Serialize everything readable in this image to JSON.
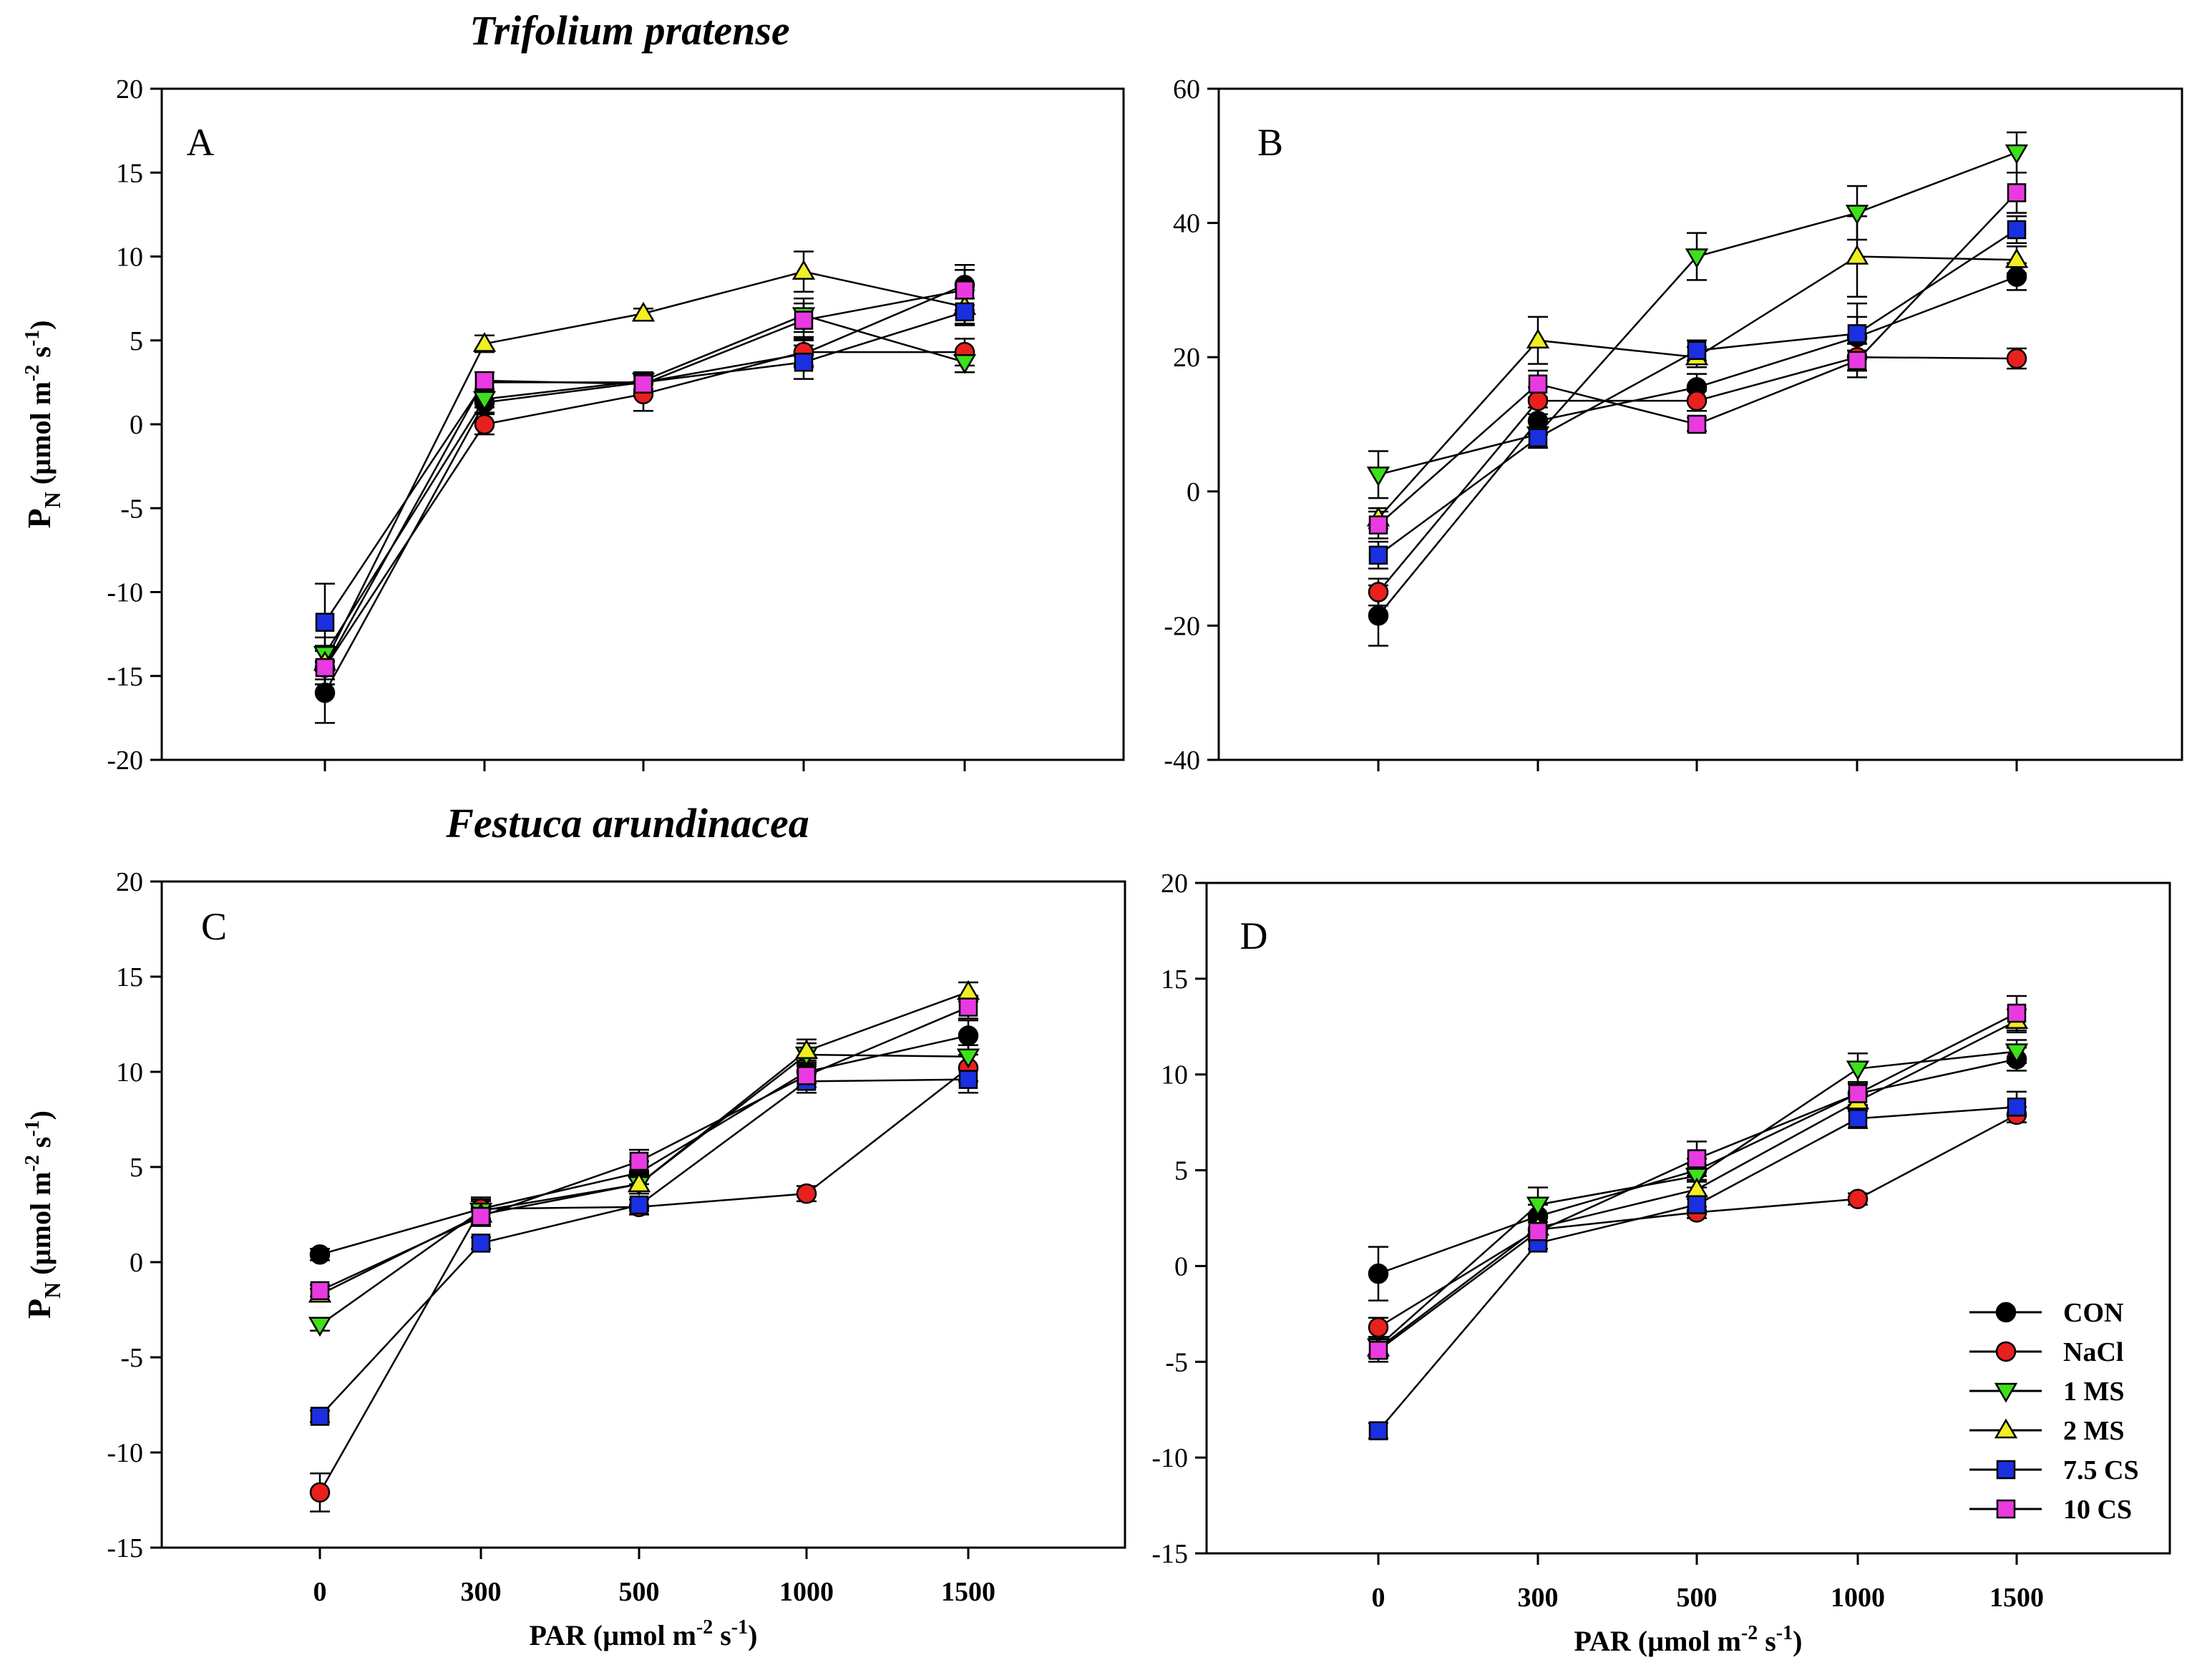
{
  "titles": {
    "top": "Trifolium pratense",
    "bottom": "Festuca arundinacea"
  },
  "axes": {
    "x_label_prefix": "PAR (µmol m",
    "x_label_exp1": "-2",
    "x_label_mid": " s",
    "x_label_exp2": "-1",
    "x_label_suffix": ")",
    "y_label_main": "P",
    "y_label_sub": "N",
    "y_label_unit": " (µmol m",
    "y_label_exp1": "-2",
    "y_label_mid": " s",
    "y_label_exp2": "-1",
    "y_label_suffix": ")"
  },
  "legend": [
    {
      "label": "CON",
      "color": "#000000",
      "marker": "circle"
    },
    {
      "label": "NaCl",
      "color": "#e8201e",
      "marker": "circle"
    },
    {
      "label": "1 MS",
      "color": "#3de01a",
      "marker": "triangle-down"
    },
    {
      "label": "2 MS",
      "color": "#f0ef22",
      "marker": "triangle-up"
    },
    {
      "label": "7.5 CS",
      "color": "#1a2fe0",
      "marker": "square"
    },
    {
      "label": "10 CS",
      "color": "#e83ae0",
      "marker": "square"
    }
  ],
  "chart_data": [
    {
      "panel": "A",
      "type": "line",
      "categories": [
        "0",
        "300",
        "500",
        "1000",
        "1500"
      ],
      "ylim": [
        -20,
        20
      ],
      "yticks": [
        -20,
        -15,
        -10,
        -5,
        0,
        5,
        10,
        15,
        20
      ],
      "series": [
        {
          "name": "CON",
          "values": [
            -16.0,
            1.3,
            2.5,
            4.2,
            8.3
          ],
          "errors": [
            1.8,
            0.6,
            0.5,
            0.8,
            1.2
          ]
        },
        {
          "name": "NaCl",
          "values": [
            -14.5,
            0.0,
            1.8,
            4.3,
            4.3
          ],
          "errors": [
            1.0,
            0.6,
            1.0,
            0.8,
            0.8
          ]
        },
        {
          "name": "1 MS",
          "values": [
            -13.7,
            1.5,
            2.6,
            6.5,
            3.7
          ],
          "errors": [
            1.0,
            0.5,
            0.5,
            1.0,
            0.6
          ]
        },
        {
          "name": "2 MS",
          "values": [
            -14.2,
            4.8,
            6.6,
            9.1,
            7.0
          ],
          "errors": [
            1.0,
            0.5,
            0.3,
            1.2,
            1.0
          ]
        },
        {
          "name": "7.5 CS",
          "values": [
            -11.8,
            2.5,
            2.5,
            3.7,
            6.7
          ],
          "errors": [
            2.3,
            0.6,
            0.6,
            1.0,
            0.8
          ]
        },
        {
          "name": "10 CS",
          "values": [
            -14.5,
            2.6,
            2.4,
            6.2,
            8.0
          ],
          "errors": [
            1.0,
            0.5,
            0.5,
            1.0,
            1.2
          ]
        }
      ]
    },
    {
      "panel": "B",
      "type": "line",
      "categories": [
        "0",
        "300",
        "500",
        "1000",
        "1500"
      ],
      "ylim": [
        -40,
        60
      ],
      "yticks": [
        -40,
        -20,
        0,
        20,
        40,
        60
      ],
      "series": [
        {
          "name": "CON",
          "values": [
            -18.5,
            10.5,
            15.5,
            23.0,
            32.0
          ],
          "errors": [
            4.5,
            2.0,
            2.0,
            5.0,
            2.0
          ]
        },
        {
          "name": "NaCl",
          "values": [
            -15.0,
            13.5,
            13.5,
            20.0,
            19.8
          ],
          "errors": [
            2.0,
            2.0,
            1.5,
            2.0,
            1.5
          ]
        },
        {
          "name": "1 MS",
          "values": [
            2.5,
            8.5,
            35.0,
            41.5,
            50.5
          ],
          "errors": [
            3.5,
            2.0,
            3.5,
            4.0,
            3.0
          ]
        },
        {
          "name": "2 MS",
          "values": [
            -4.0,
            22.5,
            20.0,
            35.0,
            34.5
          ],
          "errors": [
            1.5,
            3.5,
            1.5,
            6.0,
            2.0
          ]
        },
        {
          "name": "7.5 CS",
          "values": [
            -9.5,
            8.0,
            21.0,
            23.5,
            39.0
          ],
          "errors": [
            2.0,
            1.5,
            1.5,
            2.5,
            2.0
          ]
        },
        {
          "name": "10 CS",
          "values": [
            -5.0,
            16.0,
            10.0,
            19.5,
            44.5
          ],
          "errors": [
            2.0,
            2.0,
            1.0,
            2.5,
            3.0
          ]
        }
      ]
    },
    {
      "panel": "C",
      "type": "line",
      "categories": [
        "0",
        "300",
        "500",
        "1000",
        "1500"
      ],
      "ylim": [
        -15,
        20
      ],
      "yticks": [
        -15,
        -10,
        -5,
        0,
        5,
        10,
        15,
        20
      ],
      "series": [
        {
          "name": "CON",
          "values": [
            0.4,
            2.8,
            4.7,
            10.0,
            11.9
          ],
          "errors": [
            0.3,
            0.6,
            0.6,
            0.6,
            0.8
          ]
        },
        {
          "name": "NaCl",
          "values": [
            -12.1,
            2.8,
            2.9,
            3.6,
            10.2
          ],
          "errors": [
            1.0,
            0.5,
            0.4,
            0.4,
            0.7
          ]
        },
        {
          "name": "1 MS",
          "values": [
            -3.3,
            2.7,
            4.1,
            10.9,
            10.8
          ],
          "errors": [
            0.3,
            0.5,
            0.5,
            0.6,
            0.6
          ]
        },
        {
          "name": "2 MS",
          "values": [
            -1.7,
            2.5,
            4.1,
            11.1,
            14.2
          ],
          "errors": [
            0.3,
            0.5,
            0.5,
            0.6,
            0.5
          ]
        },
        {
          "name": "7.5 CS",
          "values": [
            -8.1,
            1.0,
            3.0,
            9.5,
            9.6
          ],
          "errors": [
            0.3,
            0.3,
            0.3,
            0.6,
            0.7
          ]
        },
        {
          "name": "10 CS",
          "values": [
            -1.5,
            2.4,
            5.3,
            9.8,
            13.4
          ],
          "errors": [
            0.3,
            0.5,
            0.6,
            0.6,
            0.6
          ]
        }
      ]
    },
    {
      "panel": "D",
      "type": "line",
      "categories": [
        "0",
        "300",
        "500",
        "1000",
        "1500"
      ],
      "ylim": [
        -15,
        20
      ],
      "yticks": [
        -15,
        -10,
        -5,
        0,
        5,
        10,
        15,
        20
      ],
      "series": [
        {
          "name": "CON",
          "values": [
            -0.4,
            2.6,
            5.0,
            9.0,
            10.8
          ],
          "errors": [
            1.4,
            0.6,
            0.6,
            0.6,
            0.6
          ]
        },
        {
          "name": "NaCl",
          "values": [
            -3.2,
            1.9,
            2.8,
            3.5,
            7.9
          ],
          "errors": [
            0.5,
            0.4,
            0.3,
            0.3,
            0.4
          ]
        },
        {
          "name": "1 MS",
          "values": [
            -4.2,
            3.2,
            4.7,
            10.3,
            11.2
          ],
          "errors": [
            0.5,
            0.9,
            0.6,
            0.8,
            0.6
          ]
        },
        {
          "name": "2 MS",
          "values": [
            -4.3,
            2.0,
            4.0,
            8.6,
            12.8
          ],
          "errors": [
            0.5,
            0.5,
            0.5,
            0.5,
            0.6
          ]
        },
        {
          "name": "7.5 CS",
          "values": [
            -8.6,
            1.2,
            3.2,
            7.7,
            8.3
          ],
          "errors": [
            0.4,
            0.3,
            0.3,
            0.5,
            0.8
          ]
        },
        {
          "name": "10 CS",
          "values": [
            -4.4,
            1.8,
            5.6,
            9.0,
            13.2
          ],
          "errors": [
            0.6,
            0.5,
            0.9,
            0.6,
            0.9
          ]
        }
      ]
    }
  ]
}
